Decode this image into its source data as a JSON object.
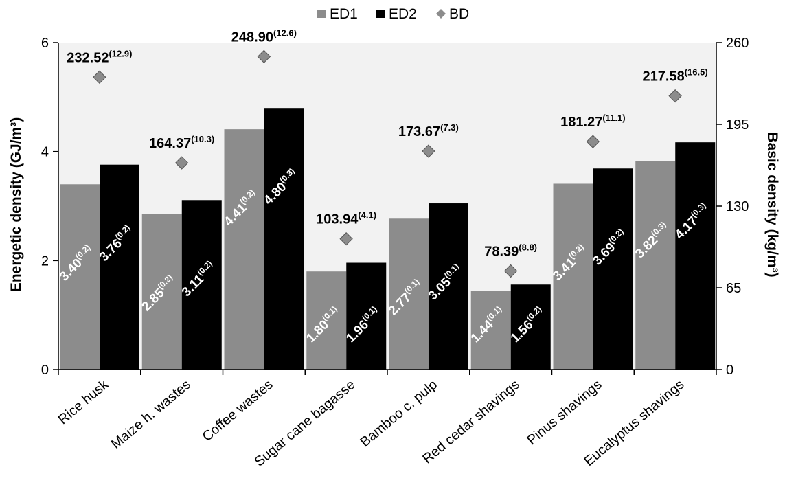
{
  "chart_data": {
    "type": "bar",
    "categories": [
      "Rice husk",
      "Maize h. wastes",
      "Coffee wastes",
      "Sugar cane bagasse",
      "Bamboo c. pulp",
      "Red cedar shavings",
      "Pinus shavings",
      "Eucalyptus shavings"
    ],
    "series": [
      {
        "name": "ED1",
        "axis": "left",
        "color": "#8c8c8c",
        "values": [
          3.4,
          2.85,
          4.41,
          1.8,
          2.77,
          1.44,
          3.41,
          3.82
        ],
        "labels": [
          "3.40",
          "2.85",
          "4.41",
          "1.80",
          "2.77",
          "1.44",
          "3.41",
          "3.82"
        ],
        "sd_labels": [
          "(0.2)",
          "(0.2)",
          "(0.2)",
          "(0.1)",
          "(0.1)",
          "(0.1)",
          "(0.2)",
          "(0.3)"
        ]
      },
      {
        "name": "ED2",
        "axis": "left",
        "color": "#000000",
        "values": [
          3.76,
          3.11,
          4.8,
          1.96,
          3.05,
          1.56,
          3.69,
          4.17
        ],
        "labels": [
          "3.76",
          "3.11",
          "4.80",
          "1.96",
          "3.05",
          "1.56",
          "3.69",
          "4.17"
        ],
        "sd_labels": [
          "(0.2)",
          "(0.2)",
          "(0.3)",
          "(0.1)",
          "(0.1)",
          "(0.2)",
          "(0.2)",
          "(0.3)"
        ]
      },
      {
        "name": "BD",
        "axis": "right",
        "marker": "diamond",
        "color": "#8c8c8c",
        "values": [
          232.52,
          164.37,
          248.9,
          103.94,
          173.67,
          78.39,
          181.27,
          217.58
        ],
        "labels": [
          "232.52",
          "164.37",
          "248.90",
          "103.94",
          "173.67",
          "78.39",
          "181.27",
          "217.58"
        ],
        "sd_labels": [
          "(12.9)",
          "(10.3)",
          "(12.6)",
          "(4.1)",
          "(7.3)",
          "(8.8)",
          "(11.1)",
          "(16.5)"
        ]
      }
    ],
    "ylabel": "Energetic density (GJ/m³)",
    "y2label": "Basic density (kg/m³)",
    "ylim": [
      0,
      6
    ],
    "y2lim": [
      0,
      260
    ],
    "yticks": [
      "0",
      "2",
      "4",
      "6"
    ],
    "y2ticks": [
      "0",
      "65",
      "130",
      "195",
      "260"
    ],
    "legend_position": "top-center",
    "grid": false
  }
}
